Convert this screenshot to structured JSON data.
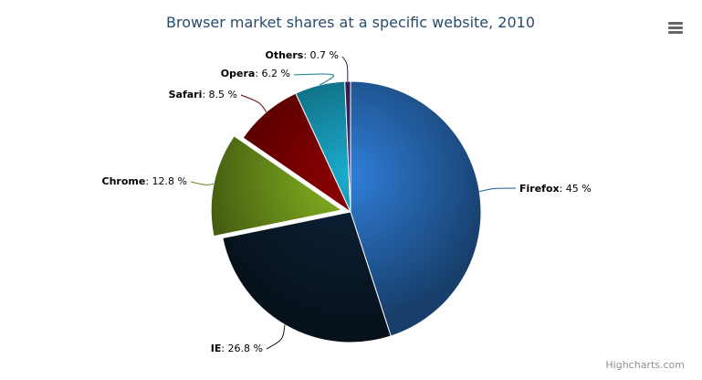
{
  "chart_data": {
    "type": "pie",
    "title": "Browser market shares at a specific website, 2010",
    "unit": "%",
    "slices": [
      {
        "name": "Firefox",
        "value": 45.0,
        "color": "#2f7ed8",
        "sliced": false
      },
      {
        "name": "IE",
        "value": 26.8,
        "color": "#0d233a",
        "sliced": false
      },
      {
        "name": "Chrome",
        "value": 12.8,
        "color": "#8bbc21",
        "sliced": true
      },
      {
        "name": "Safari",
        "value": 8.5,
        "color": "#910000",
        "sliced": false
      },
      {
        "name": "Opera",
        "value": 6.2,
        "color": "#1aadce",
        "sliced": false
      },
      {
        "name": "Others",
        "value": 0.7,
        "color": "#492970",
        "sliced": false
      }
    ],
    "labels": [
      "Firefox: 45 %",
      "IE: 26.8 %",
      "Chrome: 12.8 %",
      "Safari: 8.5 %",
      "Opera: 6.2 %",
      "Others: 0.7 %"
    ]
  },
  "menu": {
    "icon": "hamburger-menu-icon"
  },
  "credits": "Highcharts.com"
}
